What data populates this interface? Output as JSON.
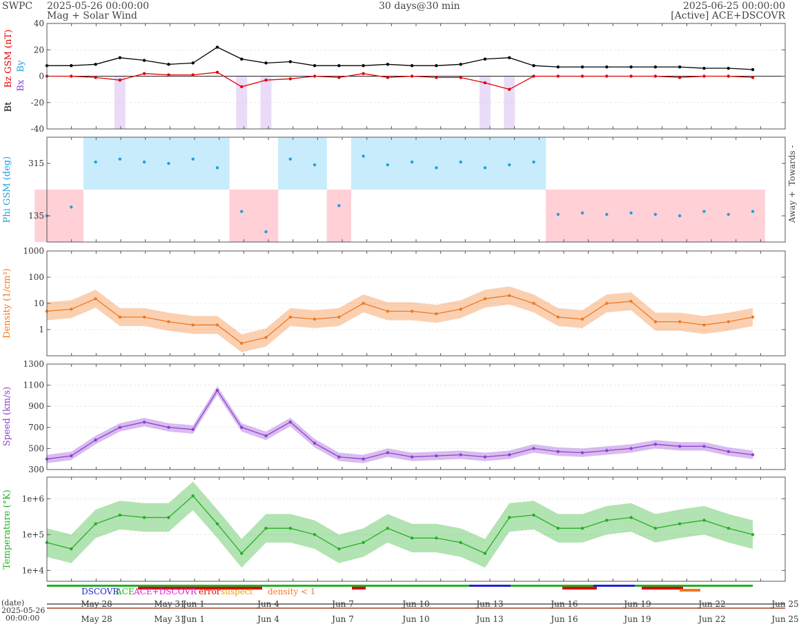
{
  "header": {
    "brand": "SWPC",
    "start": "2025-05-26 00:00:00",
    "subtitle": "Mag + Solar Wind",
    "span": "30 days@30 min",
    "end": "2025-06-25 00:00:00",
    "source": "[Active] ACE+DSCOVR"
  },
  "colors": {
    "bt": "#000000",
    "bz": "#e00000",
    "by_bx": "#8a3fd6",
    "phi": "#1ea0e0",
    "towards": "#c8ecfb",
    "away": "#ffd0d6",
    "density": "#f07820",
    "speed": "#9040d0",
    "temperature": "#22b022"
  },
  "chart_data": [
    {
      "type": "line",
      "name": "mag",
      "ylabels": [
        "Bt",
        "Bz GSM (nT)",
        "Bx",
        "By"
      ],
      "ylim": [
        -40,
        40
      ],
      "yticks": [
        40,
        20,
        0,
        -20,
        -40
      ],
      "x": [
        "May 26",
        "May 27",
        "May 28",
        "May 29",
        "May 30",
        "May 31",
        "Jun 1",
        "Jun 2",
        "Jun 3",
        "Jun 4",
        "Jun 5",
        "Jun 6",
        "Jun 7",
        "Jun 8",
        "Jun 9",
        "Jun 10",
        "Jun 11",
        "Jun 12",
        "Jun 13",
        "Jun 14",
        "Jun 15",
        "Jun 16",
        "Jun 17",
        "Jun 18",
        "Jun 19",
        "Jun 20",
        "Jun 21",
        "Jun 22",
        "Jun 23",
        "Jun 24"
      ],
      "series": [
        {
          "name": "Bt",
          "values": [
            8,
            8,
            9,
            14,
            12,
            9,
            10,
            22,
            13,
            10,
            11,
            8,
            8,
            8,
            9,
            8,
            8,
            9,
            13,
            14,
            8,
            7,
            7,
            7,
            7,
            7,
            7,
            6,
            6,
            5
          ]
        },
        {
          "name": "Bz",
          "values": [
            0,
            0,
            -1,
            -3,
            2,
            1,
            1,
            3,
            -8,
            -3,
            -2,
            0,
            -1,
            2,
            -1,
            0,
            -1,
            -1,
            -5,
            -10,
            0,
            0,
            0,
            0,
            0,
            0,
            -1,
            0,
            0,
            -1
          ]
        }
      ]
    },
    {
      "type": "scatter",
      "name": "phi",
      "ylabel": "Phi GSM (deg)",
      "ylim": [
        45,
        405
      ],
      "yticks": [
        315,
        135
      ],
      "right_labels": [
        "Towards -",
        "Away +"
      ],
      "x": [
        "May 26",
        "May 27",
        "May 28",
        "May 29",
        "May 30",
        "May 31",
        "Jun 1",
        "Jun 2",
        "Jun 3",
        "Jun 4",
        "Jun 5",
        "Jun 6",
        "Jun 7",
        "Jun 8",
        "Jun 9",
        "Jun 10",
        "Jun 11",
        "Jun 12",
        "Jun 13",
        "Jun 14",
        "Jun 15",
        "Jun 16",
        "Jun 17",
        "Jun 18",
        "Jun 19",
        "Jun 20",
        "Jun 21",
        "Jun 22",
        "Jun 23",
        "Jun 24"
      ],
      "values": [
        135,
        165,
        320,
        330,
        320,
        315,
        330,
        300,
        150,
        80,
        330,
        310,
        170,
        340,
        310,
        320,
        300,
        320,
        300,
        310,
        320,
        140,
        145,
        140,
        145,
        140,
        135,
        150,
        140,
        150
      ]
    },
    {
      "type": "line",
      "name": "density",
      "ylabel": "Density (1/cm³)",
      "yscale": "log",
      "ylim": [
        0.1,
        1000
      ],
      "yticks": [
        1000,
        100,
        10,
        1
      ],
      "x": [
        "May 26",
        "May 27",
        "May 28",
        "May 29",
        "May 30",
        "May 31",
        "Jun 1",
        "Jun 2",
        "Jun 3",
        "Jun 4",
        "Jun 5",
        "Jun 6",
        "Jun 7",
        "Jun 8",
        "Jun 9",
        "Jun 10",
        "Jun 11",
        "Jun 12",
        "Jun 13",
        "Jun 14",
        "Jun 15",
        "Jun 16",
        "Jun 17",
        "Jun 18",
        "Jun 19",
        "Jun 20",
        "Jun 21",
        "Jun 22",
        "Jun 23",
        "Jun 24"
      ],
      "values": [
        5,
        6,
        15,
        3,
        3,
        2,
        1.5,
        1.5,
        0.3,
        0.5,
        3,
        2.5,
        3,
        10,
        5,
        5,
        4,
        6,
        15,
        20,
        10,
        3,
        2.5,
        10,
        12,
        2,
        2,
        1.5,
        2,
        3
      ]
    },
    {
      "type": "line",
      "name": "speed",
      "ylabel": "Speed (km/s)",
      "ylim": [
        300,
        1300
      ],
      "yticks": [
        1300,
        1100,
        900,
        700,
        500,
        300
      ],
      "x": [
        "May 26",
        "May 27",
        "May 28",
        "May 29",
        "May 30",
        "May 31",
        "Jun 1",
        "Jun 2",
        "Jun 3",
        "Jun 4",
        "Jun 5",
        "Jun 6",
        "Jun 7",
        "Jun 8",
        "Jun 9",
        "Jun 10",
        "Jun 11",
        "Jun 12",
        "Jun 13",
        "Jun 14",
        "Jun 15",
        "Jun 16",
        "Jun 17",
        "Jun 18",
        "Jun 19",
        "Jun 20",
        "Jun 21",
        "Jun 22",
        "Jun 23",
        "Jun 24"
      ],
      "values": [
        400,
        430,
        580,
        700,
        750,
        700,
        680,
        1050,
        700,
        620,
        750,
        550,
        420,
        400,
        460,
        420,
        430,
        440,
        420,
        440,
        500,
        470,
        460,
        480,
        500,
        540,
        520,
        520,
        470,
        440
      ]
    },
    {
      "type": "line",
      "name": "temperature",
      "ylabel": "Temperature (°K)",
      "yscale": "log",
      "ylim": [
        5000,
        4000000
      ],
      "yticks": [
        "1e+6",
        "1e+5",
        "1e+4"
      ],
      "x": [
        "May 26",
        "May 27",
        "May 28",
        "May 29",
        "May 30",
        "May 31",
        "Jun 1",
        "Jun 2",
        "Jun 3",
        "Jun 4",
        "Jun 5",
        "Jun 6",
        "Jun 7",
        "Jun 8",
        "Jun 9",
        "Jun 10",
        "Jun 11",
        "Jun 12",
        "Jun 13",
        "Jun 14",
        "Jun 15",
        "Jun 16",
        "Jun 17",
        "Jun 18",
        "Jun 19",
        "Jun 20",
        "Jun 21",
        "Jun 22",
        "Jun 23",
        "Jun 24"
      ],
      "values": [
        60000,
        40000,
        200000,
        350000,
        300000,
        300000,
        1200000,
        200000,
        30000,
        150000,
        150000,
        100000,
        40000,
        60000,
        150000,
        80000,
        80000,
        60000,
        30000,
        300000,
        350000,
        150000,
        150000,
        250000,
        300000,
        150000,
        200000,
        250000,
        150000,
        100000
      ]
    }
  ],
  "source_legend": [
    "DSCOVR",
    "ACE",
    "ACE+DSCOVR",
    "error",
    "suspect",
    "density < 1"
  ],
  "x_axis": {
    "ticks": [
      "May 28",
      "May 31",
      "Jun 1",
      "Jun 4",
      "Jun 7",
      "Jun 10",
      "Jun 13",
      "Jun 16",
      "Jun 19",
      "Jun 22",
      "Jun 25"
    ],
    "date_label": "(date)",
    "start_label": "2025-05-26",
    "start_time": "00:00:00"
  }
}
